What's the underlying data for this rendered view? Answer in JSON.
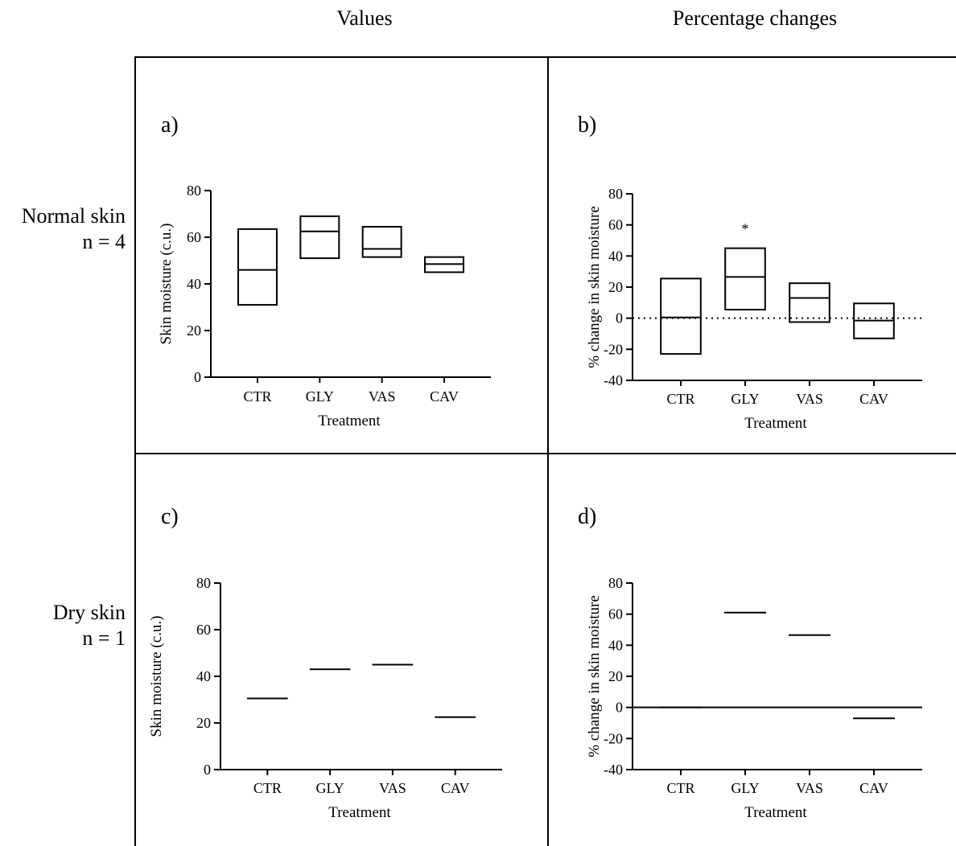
{
  "columns": {
    "left": "Values",
    "right": "Percentage changes"
  },
  "rows": [
    {
      "line1": "Normal skin",
      "line2": "n = 4"
    },
    {
      "line1": "Dry skin",
      "line2": "n = 1"
    }
  ],
  "panels": {
    "a": "a)",
    "b": "b)",
    "c": "c)",
    "d": "d)"
  },
  "chart_data": [
    {
      "id": "a",
      "type": "box",
      "title": "",
      "xlabel": "Treatment",
      "ylabel": "Skin moisture (c.u.)",
      "ylim": [
        0,
        80
      ],
      "yticks": [
        0,
        20,
        40,
        60,
        80
      ],
      "categories": [
        "CTR",
        "GLY",
        "VAS",
        "CAV"
      ],
      "boxes": [
        {
          "low": 31,
          "mid": 46,
          "high": 63.5
        },
        {
          "low": 51,
          "mid": 62.5,
          "high": 69
        },
        {
          "low": 51.5,
          "mid": 55,
          "high": 64.5
        },
        {
          "low": 45,
          "mid": 48.5,
          "high": 51.5
        }
      ],
      "reference_line": null,
      "annotations": []
    },
    {
      "id": "b",
      "type": "box",
      "title": "",
      "xlabel": "Treatment",
      "ylabel": "% change in skin moisture",
      "ylim": [
        -40,
        80
      ],
      "yticks": [
        -40,
        -20,
        0,
        20,
        40,
        60,
        80
      ],
      "categories": [
        "CTR",
        "GLY",
        "VAS",
        "CAV"
      ],
      "boxes": [
        {
          "low": -23,
          "mid": 0.5,
          "high": 25.5
        },
        {
          "low": 5.5,
          "mid": 26.5,
          "high": 45
        },
        {
          "low": -2.5,
          "mid": 13,
          "high": 22.5
        },
        {
          "low": -13,
          "mid": -1.5,
          "high": 9.5
        }
      ],
      "reference_line": {
        "y": 0,
        "style": "dotted"
      },
      "annotations": [
        {
          "category": "GLY",
          "text": "*"
        }
      ]
    },
    {
      "id": "c",
      "type": "bar",
      "title": "",
      "xlabel": "Treatment",
      "ylabel": "Skin moisture (c.u.)",
      "ylim": [
        0,
        80
      ],
      "yticks": [
        0,
        20,
        40,
        60,
        80
      ],
      "categories": [
        "CTR",
        "GLY",
        "VAS",
        "CAV"
      ],
      "values": [
        30.5,
        43,
        45,
        22.5
      ],
      "reference_line": null,
      "annotations": []
    },
    {
      "id": "d",
      "type": "bar",
      "title": "",
      "xlabel": "Treatment",
      "ylabel": "% change in skin moisture",
      "ylim": [
        -40,
        80
      ],
      "yticks": [
        -40,
        -20,
        0,
        20,
        40,
        60,
        80
      ],
      "categories": [
        "CTR",
        "GLY",
        "VAS",
        "CAV"
      ],
      "values": [
        0,
        61,
        46.5,
        -7
      ],
      "reference_line": {
        "y": 0,
        "style": "solid"
      },
      "annotations": []
    }
  ]
}
